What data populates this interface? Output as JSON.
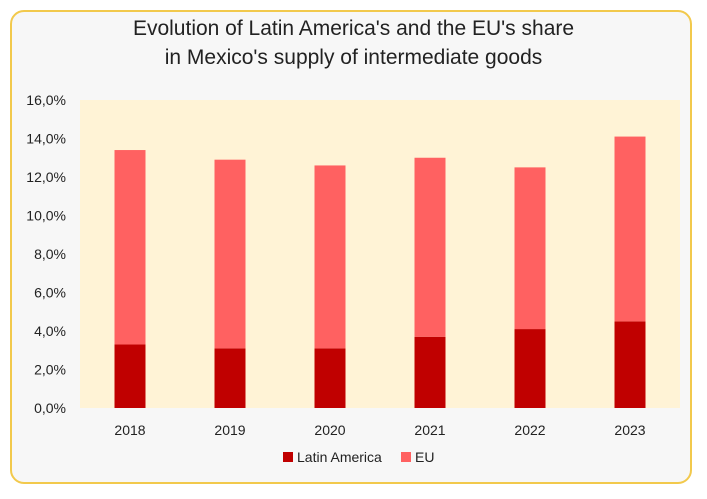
{
  "chart_data": {
    "type": "bar",
    "stacked": true,
    "title": [
      "Evolution of Latin America's and the EU's share",
      "in Mexico's supply of intermediate goods"
    ],
    "xlabel": "",
    "ylabel": "",
    "categories": [
      "2018",
      "2019",
      "2020",
      "2021",
      "2022",
      "2023"
    ],
    "series": [
      {
        "name": "Latin America",
        "color": "#c00000",
        "values": [
          3.3,
          3.1,
          3.1,
          3.7,
          4.1,
          4.5
        ]
      },
      {
        "name": "EU",
        "color": "#ff6161",
        "values": [
          10.1,
          9.8,
          9.5,
          9.3,
          8.4,
          9.6
        ]
      }
    ],
    "ylim": [
      0,
      16
    ],
    "yticks": [
      "0,0%",
      "2,0%",
      "4,0%",
      "6,0%",
      "8,0%",
      "10,0%",
      "12,0%",
      "14,0%",
      "16,0%"
    ],
    "plot_background": "#fff3d6",
    "grid": false,
    "legend_position": "bottom"
  }
}
